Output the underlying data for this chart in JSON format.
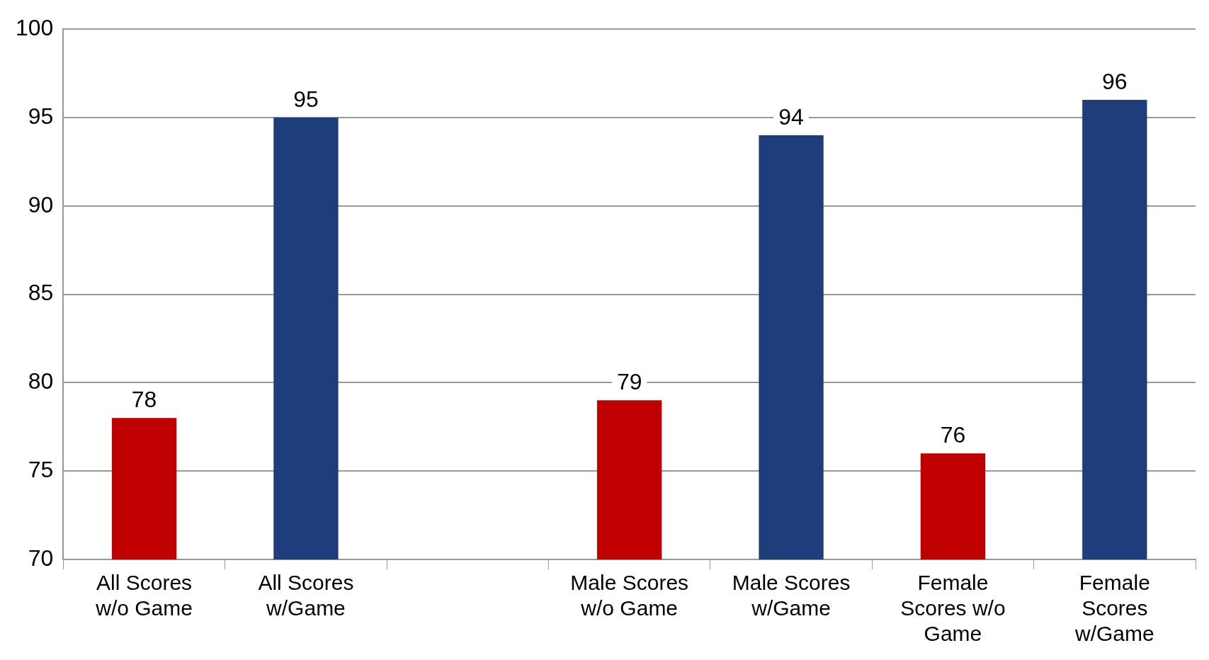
{
  "chart_data": {
    "type": "bar",
    "categories": [
      "All Scores w/o Game",
      "All Scores w/Game",
      null,
      "Male Scores w/o Game",
      "Male Scores w/Game",
      "Female Scores w/o Game",
      "Female Scores w/Game"
    ],
    "values": [
      78,
      95,
      null,
      79,
      94,
      76,
      96
    ],
    "colors": [
      "#c00000",
      "#1f3d7a",
      null,
      "#c00000",
      "#1f3d7a",
      "#c00000",
      "#1f3d7a"
    ],
    "ylim": [
      70,
      100
    ],
    "yticks": [
      70,
      75,
      80,
      85,
      90,
      95,
      100
    ],
    "grid": "y",
    "data_labels": true,
    "legend": false
  }
}
